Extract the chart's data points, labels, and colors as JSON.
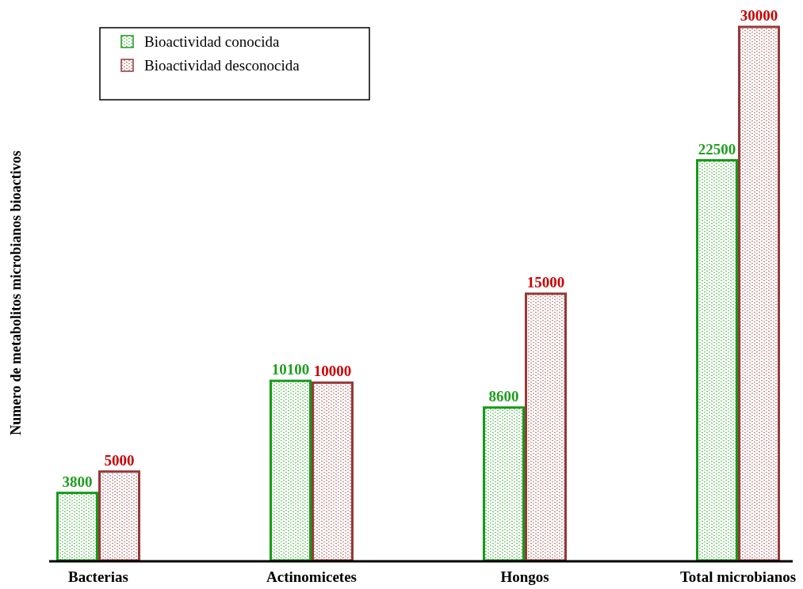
{
  "chart_data": {
    "type": "bar",
    "ylabel": "Numero de metabolitos microbianos bioactivos",
    "categories": [
      "Bacterias",
      "Actinomicetes",
      "Hongos",
      "Total microbianos"
    ],
    "series": [
      {
        "name": "Bioactividad conocida",
        "color": "#189a18",
        "values": [
          3800,
          10100,
          8600,
          22500
        ]
      },
      {
        "name": "Bioactividad desconocida",
        "color": "#983838",
        "values": [
          5000,
          10000,
          15000,
          30000
        ]
      }
    ],
    "data_labels": true,
    "legend": "top left",
    "grid": false
  }
}
